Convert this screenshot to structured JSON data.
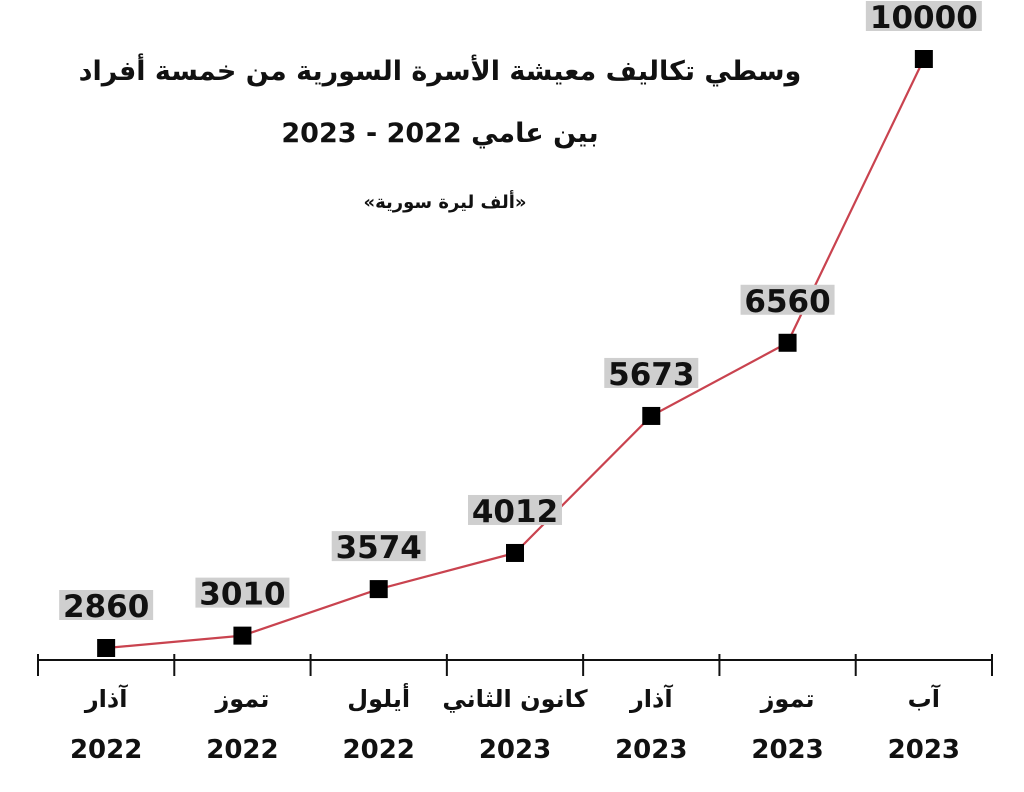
{
  "chart_data": {
    "type": "line",
    "title": "وسطي تكاليف معيشة الأسرة السورية من خمسة أفراد",
    "title_line2": "بين عامي 2022 - 2023",
    "subtitle": "«ألف ليرة سورية»",
    "categories": [
      {
        "month": "آذار",
        "year": "2022"
      },
      {
        "month": "تموز",
        "year": "2022"
      },
      {
        "month": "أيلول",
        "year": "2022"
      },
      {
        "month": "كانون الثاني",
        "year": "2023"
      },
      {
        "month": "آذار",
        "year": "2023"
      },
      {
        "month": "تموز",
        "year": "2023"
      },
      {
        "month": "آب",
        "year": "2023"
      }
    ],
    "values": [
      2860,
      3010,
      3574,
      4012,
      5673,
      6560,
      10000
    ],
    "value_labels": [
      "2860",
      "3010",
      "3574",
      "4012",
      "5673",
      "6560",
      "10000"
    ],
    "ylim": [
      2000,
      10000
    ],
    "grid": false,
    "legend": "none",
    "colors": {
      "line": "#c9434f",
      "marker": "#000000",
      "label_bg": "#cfcfcf"
    }
  }
}
